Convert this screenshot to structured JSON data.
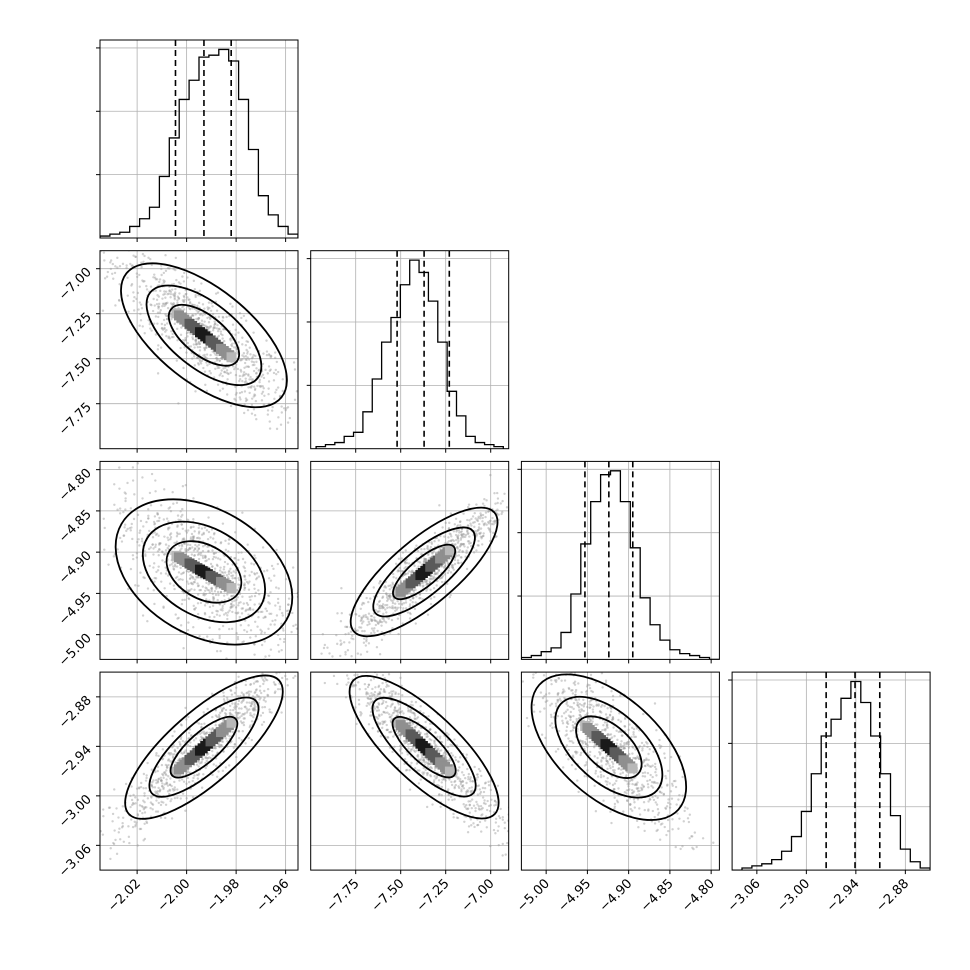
{
  "chart_data": {
    "type": "corner",
    "title": "",
    "n_params": 4,
    "params": [
      {
        "xlim": [
          -2.035,
          -1.955
        ],
        "ticks": [
          -2.02,
          -2.0,
          -1.98,
          -1.96
        ],
        "tick_labels": [
          "−2.02",
          "−2.00",
          "−1.98",
          "−1.96"
        ],
        "quantiles": [
          -2.0045,
          -1.993,
          -1.982
        ],
        "hist": {
          "edges_range": [
            -2.035,
            -1.955
          ],
          "counts": [
            1,
            2,
            3,
            6,
            10,
            16,
            32,
            52,
            72,
            82,
            94,
            95,
            98,
            92,
            72,
            46,
            22,
            12,
            6,
            2
          ]
        }
      },
      {
        "xlim": [
          -8.0,
          -6.9
        ],
        "ticks": [
          -7.75,
          -7.5,
          -7.25,
          -7.0
        ],
        "tick_labels": [
          "−7.75",
          "−7.50",
          "−7.25",
          "−7.00"
        ],
        "quantiles": [
          -7.52,
          -7.37,
          -7.23
        ],
        "hist": {
          "edges_range": [
            -7.97,
            -6.93
          ],
          "counts": [
            1,
            2,
            3,
            6,
            8,
            18,
            34,
            52,
            64,
            80,
            92,
            86,
            72,
            52,
            28,
            16,
            6,
            3,
            2,
            1
          ]
        }
      },
      {
        "xlim": [
          -5.03,
          -4.79
        ],
        "ticks": [
          -5.0,
          -4.95,
          -4.9,
          -4.85,
          -4.8
        ],
        "tick_labels": [
          "−5.00",
          "−4.95",
          "−4.90",
          "−4.85",
          "−4.80"
        ],
        "quantiles": [
          -4.953,
          -4.924,
          -4.895
        ],
        "hist": {
          "edges_range": [
            -5.03,
            -4.79
          ],
          "counts": [
            1,
            2,
            4,
            6,
            14,
            34,
            60,
            82,
            96,
            98,
            82,
            58,
            32,
            18,
            10,
            5,
            3,
            2,
            1,
            0
          ]
        }
      },
      {
        "xlim": [
          -3.09,
          -2.85
        ],
        "ticks": [
          -3.06,
          -3.0,
          -2.94,
          -2.88
        ],
        "tick_labels": [
          "−3.06",
          "−3.00",
          "−2.94",
          "−2.88"
        ],
        "quantiles": [
          -2.976,
          -2.941,
          -2.911
        ],
        "hist": {
          "edges_range": [
            -3.09,
            -2.85
          ],
          "counts": [
            0,
            1,
            2,
            3,
            5,
            9,
            16,
            28,
            46,
            64,
            72,
            82,
            90,
            80,
            64,
            46,
            26,
            10,
            4,
            1
          ]
        }
      }
    ],
    "correlations": {
      "1_0": -0.85,
      "2_0": -0.68,
      "2_1": 0.92,
      "3_0": 0.92,
      "3_1": -0.92,
      "3_2": -0.8
    },
    "contour_levels": [
      0.95,
      0.68,
      0.39
    ],
    "grid": true
  }
}
